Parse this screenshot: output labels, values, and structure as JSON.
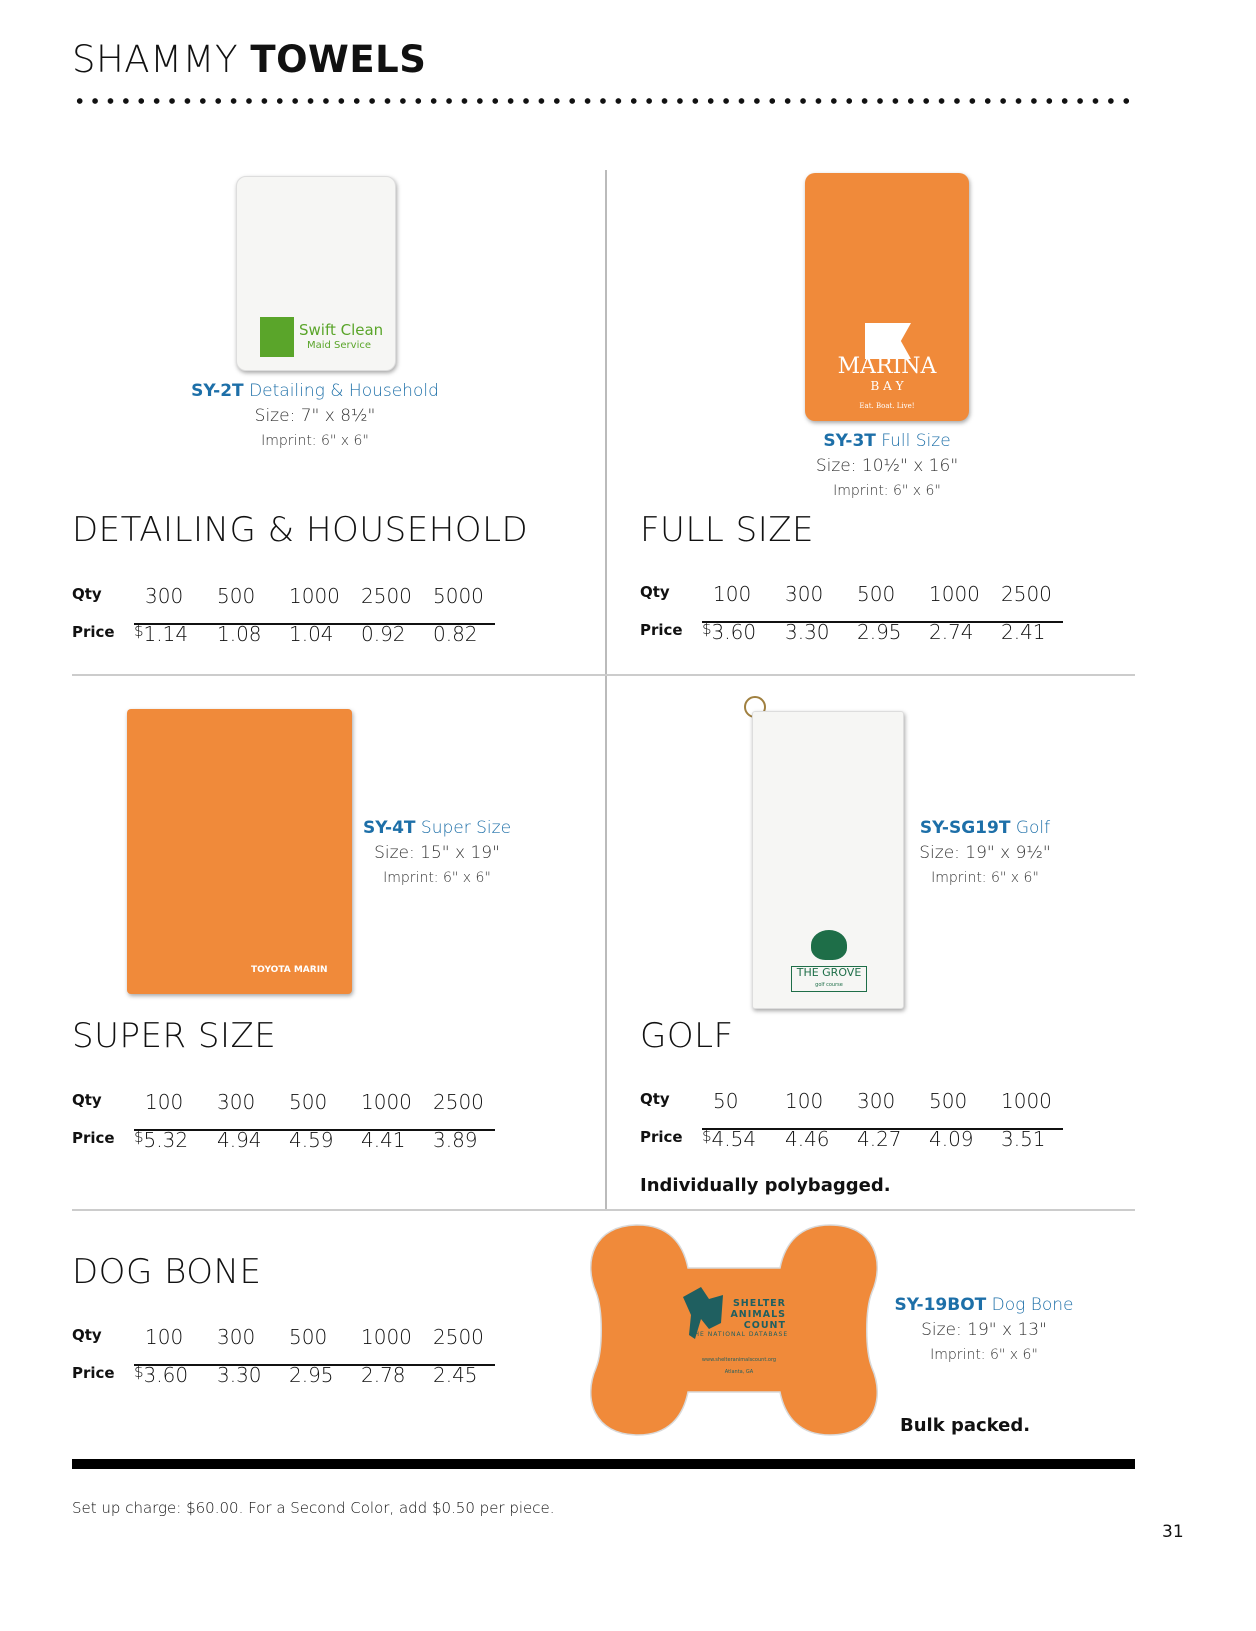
{
  "header": {
    "title_light": "SHAMMY",
    "title_bold": "TOWELS"
  },
  "colors": {
    "accent": "#1d6fa8",
    "towel_orange": "#f08a3a"
  },
  "sections": [
    {
      "heading": "DETAILING & HOUSEHOLD",
      "code": "SY-2T",
      "name": "Detailing & Household",
      "size": "Size: 7\" x 8½\"",
      "imprint": "Imprint: 6\" x 6\"",
      "logo": [
        "Swift Clean",
        "Maid Service"
      ],
      "qty_label": "Qty",
      "price_label": "Price",
      "qty": [
        "300",
        "500",
        "1000",
        "2500",
        "5000"
      ],
      "currency": "$",
      "price": [
        "1.14",
        "1.08",
        "1.04",
        "0.92",
        "0.82"
      ]
    },
    {
      "heading": "FULL SIZE",
      "code": "SY-3T",
      "name": "Full Size",
      "size": "Size: 10½\" x 16\"",
      "imprint": "Imprint: 6\" x 6\"",
      "logo": [
        "MARINA",
        "B A Y",
        "Eat. Boat. Live!"
      ],
      "qty_label": "Qty",
      "price_label": "Price",
      "qty": [
        "100",
        "300",
        "500",
        "1000",
        "2500"
      ],
      "currency": "$",
      "price": [
        "3.60",
        "3.30",
        "2.95",
        "2.74",
        "2.41"
      ]
    },
    {
      "heading": "SUPER SIZE",
      "code": "SY-4T",
      "name": "Super Size",
      "size": "Size: 15\" x 19\"",
      "imprint": "Imprint: 6\" x 6\"",
      "logo": [
        "TOYOTA MARIN"
      ],
      "qty_label": "Qty",
      "price_label": "Price",
      "qty": [
        "100",
        "300",
        "500",
        "1000",
        "2500"
      ],
      "currency": "$",
      "price": [
        "5.32",
        "4.94",
        "4.59",
        "4.41",
        "3.89"
      ]
    },
    {
      "heading": "GOLF",
      "code": "SY-SG19T",
      "name": "Golf",
      "size": "Size: 19\" x 9½\"",
      "imprint": "Imprint: 6\" x 6\"",
      "logo": [
        "THE GROVE",
        "golf course"
      ],
      "qty_label": "Qty",
      "price_label": "Price",
      "qty": [
        "50",
        "100",
        "300",
        "500",
        "1000"
      ],
      "currency": "$",
      "price": [
        "4.54",
        "4.46",
        "4.27",
        "4.09",
        "3.51"
      ],
      "note": "Individually polybagged."
    },
    {
      "heading": "DOG BONE",
      "code": "SY-19BOT",
      "name": "Dog Bone",
      "size": "Size: 19\" x 13\"",
      "imprint": "Imprint: 6\" x 6\"",
      "logo": [
        "SHELTER",
        "ANIMALS",
        "COUNT",
        "THE NATIONAL DATABASE",
        "www.shelteranimalscount.org",
        "Atlanta, GA"
      ],
      "qty_label": "Qty",
      "price_label": "Price",
      "qty": [
        "100",
        "300",
        "500",
        "1000",
        "2500"
      ],
      "currency": "$",
      "price": [
        "3.60",
        "3.30",
        "2.95",
        "2.78",
        "2.45"
      ],
      "note": "Bulk packed."
    }
  ],
  "footer": {
    "setup": "Set up charge: $60.00.  For a Second Color, add $0.50 per piece.",
    "page_number": "31"
  }
}
